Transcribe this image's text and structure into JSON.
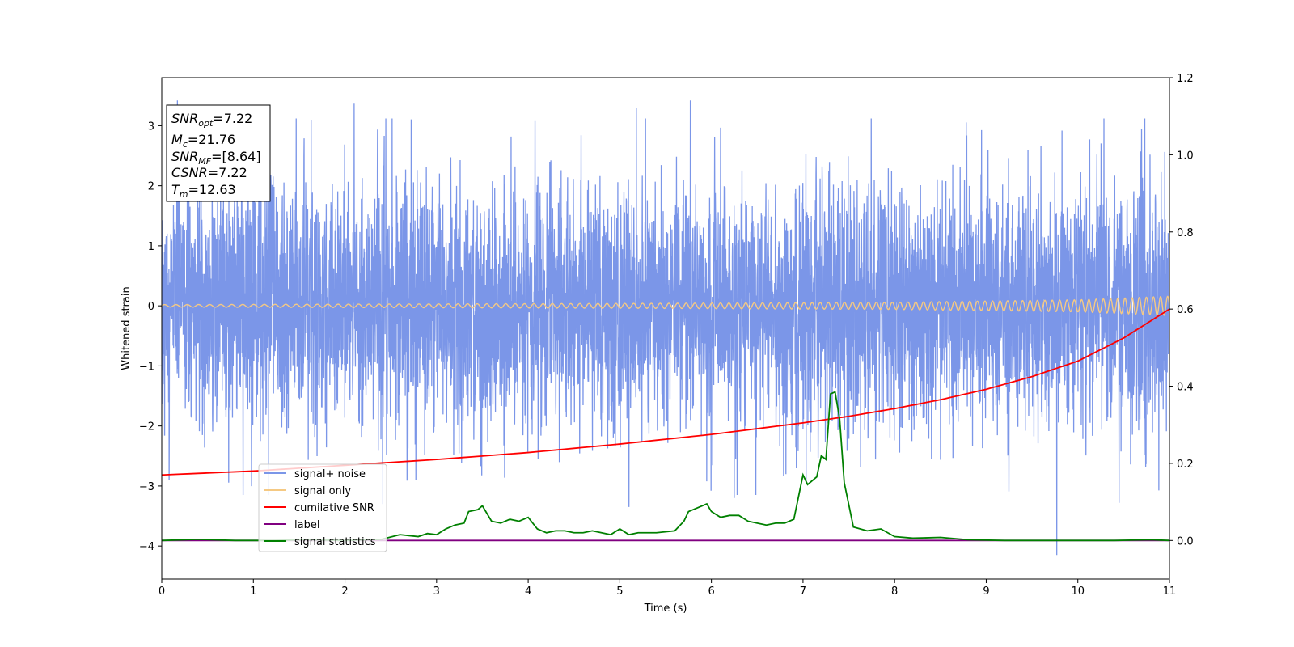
{
  "chart_data": {
    "type": "line",
    "xlabel": "Time (s)",
    "ylabel": "Whitened strain",
    "xlim": [
      0,
      11
    ],
    "ylim": [
      -4.55,
      3.8
    ],
    "y2lim": [
      -0.1,
      1.2
    ],
    "x_ticks": [
      "0",
      "1",
      "2",
      "3",
      "4",
      "5",
      "6",
      "7",
      "8",
      "9",
      "10",
      "11"
    ],
    "y_ticks": [
      "−4",
      "−3",
      "−2",
      "−1",
      "0",
      "1",
      "2",
      "3"
    ],
    "y2_ticks": [
      "0.0",
      "0.2",
      "0.4",
      "0.6",
      "0.8",
      "1.0",
      "1.2"
    ],
    "annotation_box": {
      "snr_opt": {
        "symbol": "SNR",
        "sub": "opt",
        "value": "=7.22"
      },
      "mc": {
        "symbol": "M",
        "sub": "c",
        "value": "=21.76"
      },
      "snr_mf": {
        "symbol": "SNR",
        "sub": "MF",
        "value": "=[8.64]"
      },
      "csnr": {
        "symbol": "CSNR",
        "sub": "",
        "value": "=7.22"
      },
      "tm": {
        "symbol": "T",
        "sub": "m",
        "value": "=12.63"
      }
    },
    "legend": {
      "placement": "lower-left",
      "entries": [
        {
          "label": "signal+ noise",
          "color": "#7b96e8"
        },
        {
          "label": "signal only",
          "color": "#f5c983"
        },
        {
          "label": "cumilative SNR",
          "color": "#ff0000"
        },
        {
          "label": "label",
          "color": "#800080"
        },
        {
          "label": "signal statistics",
          "color": "#008000"
        }
      ]
    },
    "series": [
      {
        "name": "signal+ noise",
        "axis": "left",
        "color": "#7b96e8",
        "description_stats": {
          "mean": 0.0,
          "std": 1.0,
          "min": -4.15,
          "max": 3.42
        },
        "extreme_peaks": [
          {
            "x": 0.17,
            "y": 3.42
          },
          {
            "x": 1.08,
            "y": 3.25
          },
          {
            "x": 2.1,
            "y": 3.38
          },
          {
            "x": 5.18,
            "y": 3.3
          },
          {
            "x": 5.77,
            "y": 3.42
          },
          {
            "x": 1.63,
            "y": 3.1
          },
          {
            "x": 2.41,
            "y": -3.3
          },
          {
            "x": 5.1,
            "y": -3.35
          },
          {
            "x": 9.77,
            "y": -4.15
          },
          {
            "x": 10.45,
            "y": -3.28
          },
          {
            "x": 0.08,
            "y": -2.9
          },
          {
            "x": 6.25,
            "y": -3.2
          }
        ]
      },
      {
        "name": "signal only",
        "axis": "left",
        "color": "#f5c983",
        "envelope": [
          {
            "x": 0,
            "amp": 0.02
          },
          {
            "x": 5,
            "amp": 0.04
          },
          {
            "x": 8,
            "amp": 0.06
          },
          {
            "x": 10,
            "amp": 0.1
          },
          {
            "x": 11,
            "amp": 0.16
          }
        ],
        "frequency_hz": [
          {
            "x": 0,
            "f": 8
          },
          {
            "x": 11,
            "f": 13
          }
        ]
      },
      {
        "name": "cumilative SNR",
        "axis": "right",
        "color": "#ff0000",
        "x": [
          0,
          1,
          2,
          3,
          4,
          5,
          6,
          7,
          7.5,
          8,
          8.5,
          9,
          9.5,
          10,
          10.5,
          11
        ],
        "y": [
          0.17,
          0.18,
          0.195,
          0.21,
          0.228,
          0.25,
          0.275,
          0.305,
          0.322,
          0.342,
          0.365,
          0.392,
          0.425,
          0.465,
          0.525,
          0.6
        ]
      },
      {
        "name": "label",
        "axis": "right",
        "color": "#800080",
        "x": [
          0,
          11
        ],
        "y": [
          0,
          0
        ]
      },
      {
        "name": "signal statistics",
        "axis": "right",
        "color": "#008000",
        "x": [
          0,
          0.4,
          0.8,
          1.2,
          1.6,
          2.0,
          2.4,
          2.6,
          2.8,
          2.9,
          3.0,
          3.1,
          3.2,
          3.3,
          3.35,
          3.45,
          3.5,
          3.6,
          3.7,
          3.8,
          3.9,
          4.0,
          4.1,
          4.2,
          4.3,
          4.4,
          4.5,
          4.6,
          4.7,
          4.8,
          4.9,
          5.0,
          5.1,
          5.2,
          5.4,
          5.6,
          5.7,
          5.75,
          5.85,
          5.95,
          6.0,
          6.1,
          6.2,
          6.3,
          6.4,
          6.5,
          6.6,
          6.7,
          6.8,
          6.9,
          7.0,
          7.05,
          7.15,
          7.2,
          7.25,
          7.3,
          7.35,
          7.4,
          7.45,
          7.55,
          7.7,
          7.85,
          8.0,
          8.2,
          8.5,
          8.8,
          9.2,
          9.6,
          10.0,
          10.4,
          10.8,
          11.0
        ],
        "y": [
          0.0,
          0.003,
          0.0,
          0.0,
          0.002,
          0.0,
          0.003,
          0.015,
          0.01,
          0.018,
          0.015,
          0.03,
          0.04,
          0.045,
          0.075,
          0.08,
          0.09,
          0.05,
          0.045,
          0.055,
          0.05,
          0.06,
          0.03,
          0.02,
          0.025,
          0.025,
          0.02,
          0.02,
          0.025,
          0.02,
          0.015,
          0.03,
          0.015,
          0.02,
          0.02,
          0.025,
          0.05,
          0.075,
          0.085,
          0.095,
          0.075,
          0.06,
          0.065,
          0.065,
          0.05,
          0.045,
          0.04,
          0.045,
          0.045,
          0.055,
          0.17,
          0.145,
          0.165,
          0.22,
          0.21,
          0.38,
          0.385,
          0.315,
          0.15,
          0.035,
          0.025,
          0.03,
          0.01,
          0.006,
          0.008,
          0.002,
          0.0,
          0.0,
          0.0,
          0.0,
          0.002,
          0.0
        ]
      }
    ]
  }
}
